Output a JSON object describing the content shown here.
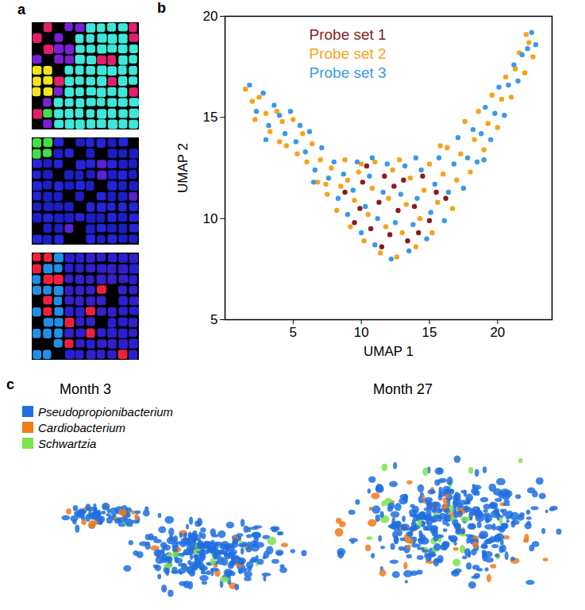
{
  "panel_a": {
    "label": "a"
  },
  "chart_data": {
    "type": "scatter",
    "panel_label": "b",
    "x_label": "UMAP 1",
    "y_label": "UMAP 2",
    "xlim": [
      0,
      24
    ],
    "ylim": [
      5,
      20
    ],
    "xticks": [
      5,
      10,
      15,
      20
    ],
    "yticks": [
      5,
      10,
      15,
      20
    ],
    "legend": "top",
    "series": [
      {
        "name": "Probe set 1",
        "color": "#8b1c1c",
        "values": [
          [
            8.8,
            11.3
          ],
          [
            9.5,
            9.8
          ],
          [
            10.1,
            11.8
          ],
          [
            10.7,
            9.5
          ],
          [
            11.3,
            10.8
          ],
          [
            11.7,
            12.1
          ],
          [
            12.1,
            9.2
          ],
          [
            12.7,
            10.4
          ],
          [
            13.1,
            11.9
          ],
          [
            13.4,
            8.9
          ],
          [
            13.9,
            10.6
          ],
          [
            14.5,
            12.1
          ],
          [
            15.0,
            9.9
          ],
          [
            15.5,
            11.3
          ],
          [
            11.5,
            8.6
          ],
          [
            12.4,
            11.6
          ],
          [
            9.9,
            10.5
          ],
          [
            14.2,
            9.3
          ],
          [
            16.2,
            11.0
          ],
          [
            10.4,
            12.6
          ]
        ]
      },
      {
        "name": "Probe set 2",
        "color": "#f7a21b",
        "values": [
          [
            1.5,
            16.4
          ],
          [
            2.0,
            15.8
          ],
          [
            2.5,
            16.0
          ],
          [
            3.0,
            15.2
          ],
          [
            3.3,
            14.3
          ],
          [
            3.8,
            15.3
          ],
          [
            4.2,
            14.8
          ],
          [
            4.5,
            13.6
          ],
          [
            5.0,
            14.9
          ],
          [
            5.3,
            13.2
          ],
          [
            5.7,
            14.2
          ],
          [
            6.0,
            12.8
          ],
          [
            6.4,
            13.7
          ],
          [
            6.8,
            11.8
          ],
          [
            7.0,
            12.9
          ],
          [
            7.5,
            11.2
          ],
          [
            7.8,
            12.5
          ],
          [
            8.2,
            10.4
          ],
          [
            8.5,
            11.6
          ],
          [
            8.8,
            12.9
          ],
          [
            9.2,
            9.6
          ],
          [
            9.5,
            10.9
          ],
          [
            9.8,
            12.3
          ],
          [
            10.2,
            8.9
          ],
          [
            10.5,
            10.2
          ],
          [
            10.8,
            11.5
          ],
          [
            11.0,
            12.8
          ],
          [
            11.4,
            8.3
          ],
          [
            11.8,
            9.6
          ],
          [
            12.0,
            11.0
          ],
          [
            12.3,
            12.4
          ],
          [
            12.6,
            8.1
          ],
          [
            13.0,
            9.3
          ],
          [
            13.3,
            10.7
          ],
          [
            13.6,
            12.0
          ],
          [
            14.0,
            8.6
          ],
          [
            14.3,
            10.0
          ],
          [
            14.6,
            11.4
          ],
          [
            15.0,
            12.7
          ],
          [
            15.2,
            9.3
          ],
          [
            15.6,
            10.8
          ],
          [
            16.0,
            12.2
          ],
          [
            16.3,
            13.5
          ],
          [
            16.7,
            10.5
          ],
          [
            17.0,
            11.9
          ],
          [
            17.3,
            13.2
          ],
          [
            17.6,
            14.8
          ],
          [
            18.0,
            12.3
          ],
          [
            18.3,
            13.9
          ],
          [
            18.6,
            15.3
          ],
          [
            19.0,
            13.4
          ],
          [
            19.3,
            14.7
          ],
          [
            19.6,
            16.1
          ],
          [
            20.0,
            14.5
          ],
          [
            20.3,
            15.9
          ],
          [
            20.6,
            17.0
          ],
          [
            21.0,
            16.0
          ],
          [
            21.3,
            17.4
          ],
          [
            21.6,
            18.2
          ],
          [
            22.0,
            17.2
          ],
          [
            22.3,
            18.7
          ],
          [
            22.6,
            18.0
          ],
          [
            22.1,
            19.1
          ],
          [
            2.2,
            14.9
          ],
          [
            4.0,
            13.8
          ],
          [
            9.0,
            11.9
          ],
          [
            12.8,
            12.9
          ],
          [
            10.0,
            12.7
          ],
          [
            15.8,
            13.6
          ],
          [
            7.4,
            11.7
          ]
        ]
      },
      {
        "name": "Probe set 3",
        "color": "#3a99e8",
        "values": [
          [
            1.8,
            16.6
          ],
          [
            2.3,
            15.3
          ],
          [
            2.8,
            16.2
          ],
          [
            3.2,
            14.6
          ],
          [
            3.6,
            15.6
          ],
          [
            4.0,
            15.1
          ],
          [
            4.4,
            14.2
          ],
          [
            4.8,
            15.3
          ],
          [
            5.2,
            13.8
          ],
          [
            5.5,
            14.6
          ],
          [
            5.9,
            13.3
          ],
          [
            6.2,
            14.3
          ],
          [
            6.6,
            12.4
          ],
          [
            7.1,
            13.5
          ],
          [
            7.6,
            12.0
          ],
          [
            8.0,
            12.8
          ],
          [
            8.3,
            11.0
          ],
          [
            8.7,
            12.2
          ],
          [
            9.0,
            10.2
          ],
          [
            9.4,
            11.4
          ],
          [
            9.7,
            12.8
          ],
          [
            10.0,
            9.3
          ],
          [
            10.3,
            10.6
          ],
          [
            10.6,
            12.1
          ],
          [
            11.0,
            8.7
          ],
          [
            11.2,
            10.0
          ],
          [
            11.6,
            11.3
          ],
          [
            11.9,
            12.7
          ],
          [
            12.2,
            8.0
          ],
          [
            12.5,
            9.8
          ],
          [
            12.9,
            11.2
          ],
          [
            13.2,
            12.6
          ],
          [
            13.5,
            8.4
          ],
          [
            13.8,
            9.7
          ],
          [
            14.1,
            11.0
          ],
          [
            14.4,
            12.4
          ],
          [
            14.8,
            9.0
          ],
          [
            15.1,
            10.3
          ],
          [
            15.4,
            11.7
          ],
          [
            15.7,
            13.0
          ],
          [
            16.1,
            9.9
          ],
          [
            16.4,
            11.3
          ],
          [
            16.8,
            12.7
          ],
          [
            17.1,
            14.0
          ],
          [
            17.5,
            11.5
          ],
          [
            17.8,
            13.0
          ],
          [
            18.2,
            14.4
          ],
          [
            18.5,
            12.8
          ],
          [
            18.8,
            14.2
          ],
          [
            19.1,
            15.5
          ],
          [
            19.5,
            13.9
          ],
          [
            19.8,
            15.2
          ],
          [
            20.1,
            16.5
          ],
          [
            20.5,
            15.1
          ],
          [
            20.8,
            16.6
          ],
          [
            21.2,
            17.6
          ],
          [
            21.5,
            16.8
          ],
          [
            21.8,
            18.1
          ],
          [
            22.2,
            18.4
          ],
          [
            22.5,
            19.2
          ],
          [
            22.8,
            18.6
          ],
          [
            6.5,
            11.8
          ],
          [
            3.0,
            13.9
          ],
          [
            10.8,
            13.0
          ],
          [
            14.0,
            13.0
          ],
          [
            19.0,
            12.9
          ]
        ]
      }
    ]
  },
  "panel_c": {
    "label": "c",
    "legend": [
      {
        "name": "Pseudopropionibacterium",
        "color": "#1f6fe0"
      },
      {
        "name": "Cardiobacterium",
        "color": "#f07a1a"
      },
      {
        "name": "Schwartzia",
        "color": "#7de34a"
      }
    ],
    "views": [
      {
        "title": "Month 3"
      },
      {
        "title": "Month 27"
      }
    ]
  }
}
